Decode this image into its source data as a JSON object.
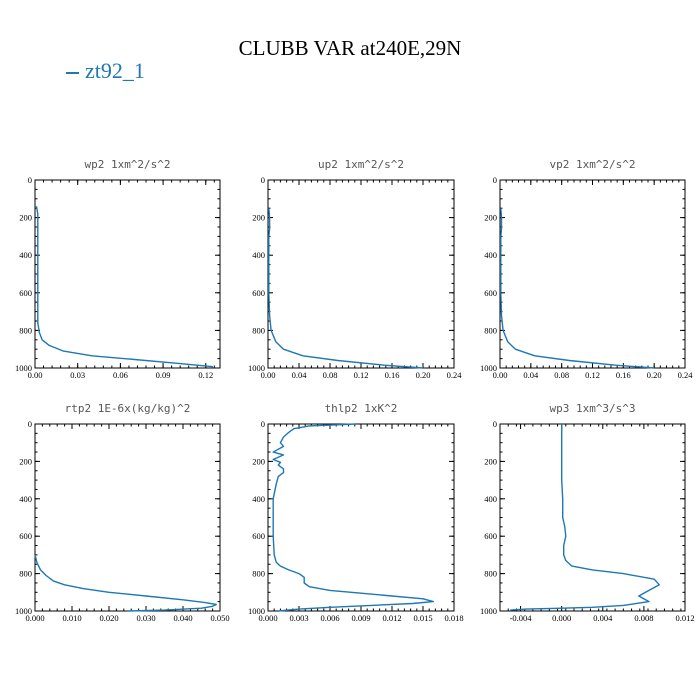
{
  "title": "CLUBB VAR at240E,29N",
  "legend": {
    "label": "zt92_1",
    "color": "#1f77b4"
  },
  "chart_data": [
    {
      "type": "line",
      "title": "wp2  1xm^2/s^2",
      "xlim": [
        0,
        0.13
      ],
      "ylim": [
        1000,
        0
      ],
      "xticks": [
        0,
        0.03,
        0.06,
        0.09,
        0.12
      ],
      "xtick_labels": [
        "0.00",
        "0.03",
        "0.06",
        "0.09",
        "0.12"
      ],
      "yticks": [
        0,
        200,
        400,
        600,
        800,
        1000
      ],
      "ytick_labels": [
        "0",
        "200",
        "400",
        "600",
        "800",
        "1000"
      ],
      "series": [
        {
          "name": "zt92_1",
          "x": [
            0.001,
            0.002,
            0.002,
            0.002,
            0.002,
            0.002,
            0.002,
            0.002,
            0.003,
            0.005,
            0.01,
            0.02,
            0.04,
            0.07,
            0.1,
            0.125
          ],
          "y": [
            140,
            180,
            230,
            260,
            350,
            500,
            650,
            760,
            810,
            850,
            880,
            910,
            935,
            955,
            975,
            993
          ]
        }
      ]
    },
    {
      "type": "line",
      "title": "up2  1xm^2/s^2",
      "xlim": [
        0,
        0.24
      ],
      "ylim": [
        1000,
        0
      ],
      "xticks": [
        0,
        0.04,
        0.08,
        0.12,
        0.16,
        0.2,
        0.24
      ],
      "xtick_labels": [
        "0.00",
        "0.04",
        "0.08",
        "0.12",
        "0.16",
        "0.20",
        "0.24"
      ],
      "yticks": [
        0,
        200,
        400,
        600,
        800,
        1000
      ],
      "ytick_labels": [
        "0",
        "200",
        "400",
        "600",
        "800",
        "1000"
      ],
      "series": [
        {
          "name": "zt92_1",
          "x": [
            0.001,
            0.002,
            0.002,
            0.001,
            0.001,
            0.001,
            0.002,
            0.004,
            0.01,
            0.02,
            0.045,
            0.09,
            0.15,
            0.2
          ],
          "y": [
            150,
            200,
            260,
            300,
            450,
            600,
            720,
            800,
            860,
            900,
            935,
            960,
            985,
            1000
          ]
        }
      ]
    },
    {
      "type": "line",
      "title": "vp2  1xm^2/s^2",
      "xlim": [
        0,
        0.24
      ],
      "ylim": [
        1000,
        0
      ],
      "xticks": [
        0,
        0.04,
        0.08,
        0.12,
        0.16,
        0.2,
        0.24
      ],
      "xtick_labels": [
        "0.00",
        "0.04",
        "0.08",
        "0.12",
        "0.16",
        "0.20",
        "0.24"
      ],
      "yticks": [
        0,
        200,
        400,
        600,
        800,
        1000
      ],
      "ytick_labels": [
        "0",
        "200",
        "400",
        "600",
        "800",
        "1000"
      ],
      "series": [
        {
          "name": "zt92_1",
          "x": [
            0.001,
            0.002,
            0.002,
            0.001,
            0.001,
            0.001,
            0.002,
            0.004,
            0.01,
            0.02,
            0.045,
            0.09,
            0.15,
            0.2
          ],
          "y": [
            150,
            200,
            260,
            300,
            450,
            600,
            720,
            800,
            860,
            900,
            935,
            960,
            985,
            1000
          ]
        }
      ]
    },
    {
      "type": "line",
      "title": "rtp2  1E-6x(kg/kg)^2",
      "xlim": [
        0,
        0.05
      ],
      "ylim": [
        1000,
        0
      ],
      "xticks": [
        0,
        0.01,
        0.02,
        0.03,
        0.04,
        0.05
      ],
      "xtick_labels": [
        "0.000",
        "0.010",
        "0.020",
        "0.030",
        "0.040",
        "0.050"
      ],
      "yticks": [
        0,
        200,
        400,
        600,
        800,
        1000
      ],
      "ytick_labels": [
        "0",
        "200",
        "400",
        "600",
        "800",
        "1000"
      ],
      "series": [
        {
          "name": "zt92_1",
          "x": [
            0.0,
            0.0005,
            0.0015,
            0.003,
            0.005,
            0.008,
            0.013,
            0.02,
            0.03,
            0.04,
            0.046,
            0.049,
            0.048,
            0.045,
            0.035,
            0.025
          ],
          "y": [
            700,
            740,
            780,
            810,
            840,
            860,
            880,
            900,
            920,
            940,
            955,
            965,
            975,
            985,
            995,
            1000
          ]
        }
      ]
    },
    {
      "type": "line",
      "title": "thlp2  1xK^2",
      "xlim": [
        0,
        0.018
      ],
      "ylim": [
        1000,
        0
      ],
      "xticks": [
        0,
        0.003,
        0.006,
        0.009,
        0.012,
        0.015,
        0.018
      ],
      "xtick_labels": [
        "0.000",
        "0.003",
        "0.006",
        "0.009",
        "0.012",
        "0.015",
        "0.018"
      ],
      "yticks": [
        0,
        200,
        400,
        600,
        800,
        1000
      ],
      "ytick_labels": [
        "0",
        "200",
        "400",
        "600",
        "800",
        "1000"
      ],
      "series": [
        {
          "name": "zt92_1",
          "x": [
            0.0085,
            0.004,
            0.0025,
            0.002,
            0.0015,
            0.0012,
            0.0015,
            0.001,
            0.0005,
            0.0015,
            0.0005,
            0.0012,
            0.001,
            0.0015,
            0.0015,
            0.001,
            0.0008,
            0.0005,
            0.0005,
            0.0005,
            0.0006,
            0.0008,
            0.0012,
            0.002,
            0.003,
            0.0035,
            0.0035,
            0.004,
            0.006,
            0.009,
            0.012,
            0.015,
            0.016,
            0.014,
            0.01,
            0.006,
            0.003,
            0.001
          ],
          "y": [
            0,
            10,
            25,
            45,
            70,
            100,
            120,
            135,
            150,
            165,
            190,
            205,
            220,
            240,
            260,
            280,
            320,
            400,
            500,
            600,
            700,
            740,
            760,
            780,
            800,
            820,
            850,
            870,
            890,
            905,
            920,
            935,
            950,
            960,
            970,
            980,
            990,
            1000
          ]
        }
      ]
    },
    {
      "type": "line",
      "title": "wp3  1xm^3/s^3",
      "xlim": [
        -0.006,
        0.012
      ],
      "ylim": [
        1000,
        0
      ],
      "xticks": [
        -0.004,
        0.0,
        0.004,
        0.008,
        0.012
      ],
      "xtick_labels": [
        "-0.004",
        "0.000",
        "0.004",
        "0.008",
        "0.012"
      ],
      "yticks": [
        0,
        200,
        400,
        600,
        800,
        1000
      ],
      "ytick_labels": [
        "0",
        "200",
        "400",
        "600",
        "800",
        "1000"
      ],
      "series": [
        {
          "name": "zt92_1",
          "x": [
            0.0,
            0.0,
            0.0001,
            0.0001,
            0.0003,
            0.0004,
            0.0002,
            0.0002,
            0.0004,
            0.001,
            0.003,
            0.006,
            0.009,
            0.0095,
            0.0085,
            0.0075,
            0.0085,
            0.006,
            0.003,
            0.0,
            -0.0035,
            -0.005
          ],
          "y": [
            0,
            300,
            400,
            500,
            550,
            600,
            650,
            700,
            730,
            760,
            780,
            800,
            830,
            860,
            890,
            920,
            950,
            970,
            980,
            985,
            990,
            995
          ]
        }
      ]
    }
  ]
}
